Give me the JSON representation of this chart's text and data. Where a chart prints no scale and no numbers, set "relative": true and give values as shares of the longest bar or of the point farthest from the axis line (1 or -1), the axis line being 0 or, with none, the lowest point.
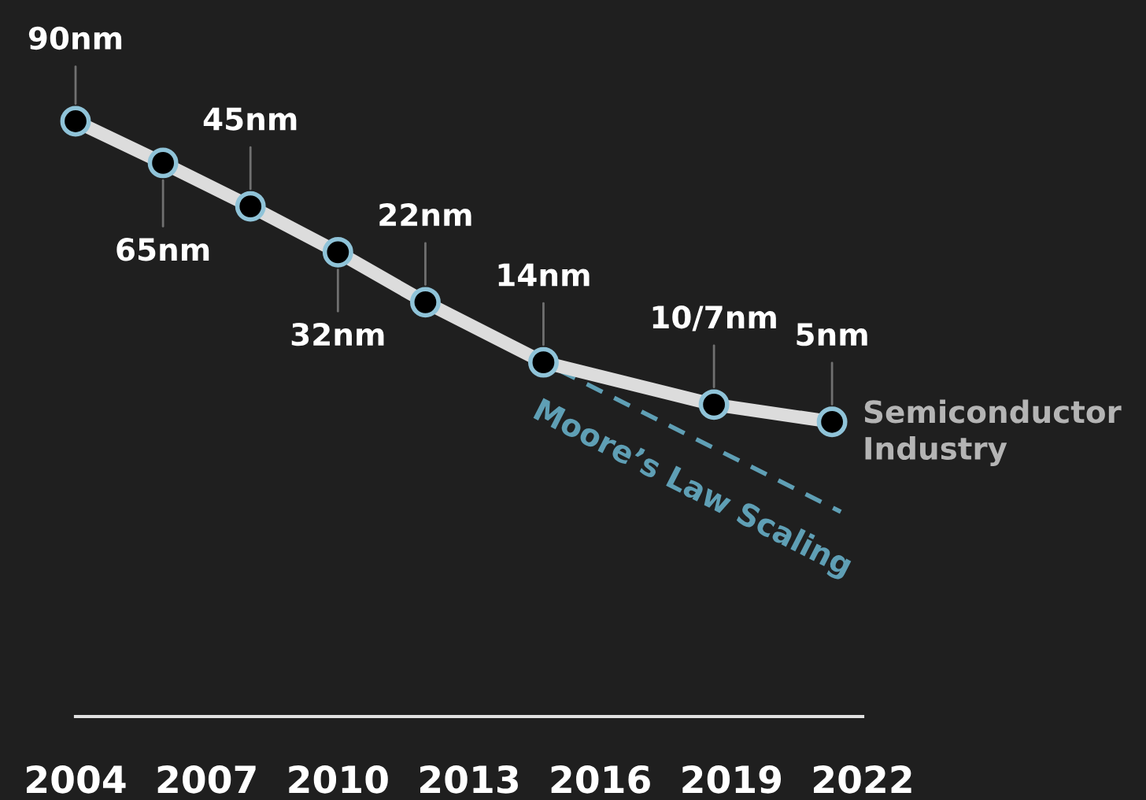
{
  "chart_data": {
    "type": "line",
    "relative": true,
    "xlim": [
      2004,
      2022
    ],
    "xticks": [
      2004,
      2007,
      2010,
      2013,
      2016,
      2019,
      2022
    ],
    "grid": false,
    "legend": false,
    "tick_labels": "x",
    "series": [
      {
        "name": "Semiconductor Industry",
        "color": "#dcdcdc",
        "marker": "circle",
        "line_style": "solid",
        "x": [
          2004,
          2006,
          2008,
          2010,
          2012,
          2014.7,
          2018.6,
          2021.3
        ],
        "values": [
          1,
          0.93,
          0.857,
          0.78,
          0.696,
          0.595,
          0.524,
          0.495
        ]
      },
      {
        "name": "Moore’s Law Scaling",
        "color": "#5f9fb5",
        "marker": "none",
        "line_style": "dashed",
        "x": [
          2014.7,
          2021.5
        ],
        "values": [
          0.595,
          0.344
        ]
      }
    ],
    "annotations": [
      {
        "text": "90nm",
        "x": 2004,
        "y": 1
      },
      {
        "text": "65nm",
        "x": 2006,
        "y": 0.93
      },
      {
        "text": "45nm",
        "x": 2008,
        "y": 0.857
      },
      {
        "text": "32nm",
        "x": 2010,
        "y": 0.78
      },
      {
        "text": "22nm",
        "x": 2012,
        "y": 0.696
      },
      {
        "text": "14nm",
        "x": 2014.7,
        "y": 0.595
      },
      {
        "text": "10/7nm",
        "x": 2018.6,
        "y": 0.524
      },
      {
        "text": "5nm",
        "x": 2021.3,
        "y": 0.495
      }
    ]
  }
}
